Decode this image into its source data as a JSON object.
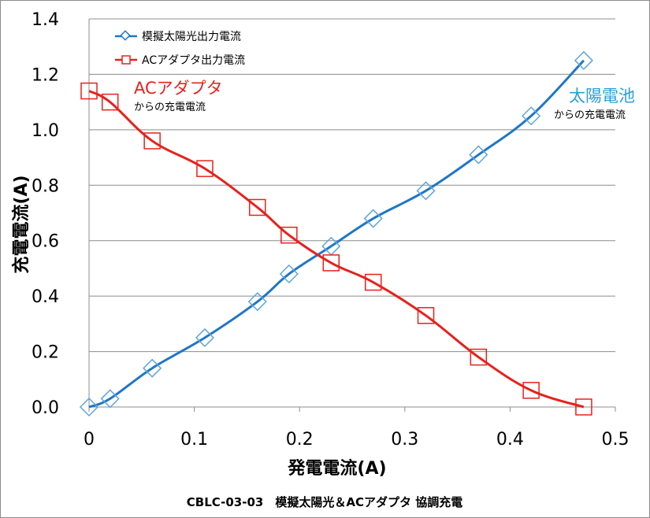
{
  "chart_data": {
    "type": "line",
    "xlabel": "発電電流(A)",
    "ylabel": "充電電流(A)",
    "xlim": [
      0,
      0.5
    ],
    "ylim": [
      0,
      1.4
    ],
    "xticks": [
      "0",
      "0.1",
      "0.2",
      "0.3",
      "0.4",
      "0.5"
    ],
    "yticks": [
      "0.0",
      "0.2",
      "0.4",
      "0.6",
      "0.8",
      "1.0",
      "1.2",
      "1.4"
    ],
    "grid": "horizontal",
    "legend_position": "top-left",
    "caption": "CBLC-03-03　模擬太陽光＆ACアダプタ 協調充電",
    "series": [
      {
        "name": "模擬太陽光出力電流",
        "color": "#1f77c8",
        "marker": "diamond",
        "x": [
          0,
          0.02,
          0.06,
          0.11,
          0.16,
          0.19,
          0.23,
          0.27,
          0.32,
          0.37,
          0.42,
          0.47
        ],
        "y": [
          0.0,
          0.03,
          0.14,
          0.25,
          0.38,
          0.48,
          0.58,
          0.68,
          0.78,
          0.91,
          1.05,
          1.25
        ]
      },
      {
        "name": "ACアダプタ出力電流",
        "color": "#e8211c",
        "marker": "square",
        "x": [
          0,
          0.02,
          0.06,
          0.11,
          0.16,
          0.19,
          0.23,
          0.27,
          0.32,
          0.37,
          0.42,
          0.47
        ],
        "y": [
          1.14,
          1.1,
          0.96,
          0.86,
          0.72,
          0.62,
          0.52,
          0.45,
          0.33,
          0.18,
          0.06,
          0.0
        ]
      }
    ],
    "annotations": [
      {
        "title": "ACアダプタ",
        "subtitle": "からの充電電流",
        "color": "#e8211c"
      },
      {
        "title": "太陽電池",
        "subtitle": "からの充電電流",
        "color": "#2a9fd6"
      }
    ]
  }
}
